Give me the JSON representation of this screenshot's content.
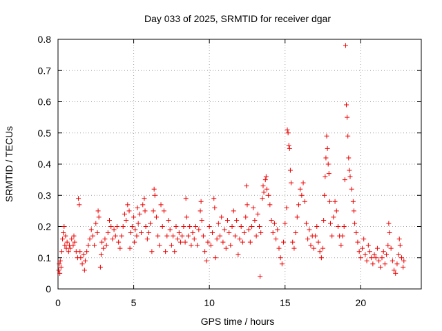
{
  "chart_data": {
    "type": "scatter",
    "title": "Day 033 of 2025, SRMTID for receiver dgar",
    "xlabel": "GPS time / hours",
    "ylabel": "SRMTID / TECUs",
    "xlim": [
      0,
      24
    ],
    "ylim": [
      0,
      0.8
    ],
    "x_ticks": [
      0,
      5,
      10,
      15,
      20
    ],
    "y_ticks": [
      0,
      0.1,
      0.2,
      0.3,
      0.4,
      0.5,
      0.6,
      0.7,
      0.8
    ],
    "x_tick_labels": [
      "0",
      "5",
      "10",
      "15",
      "20"
    ],
    "y_tick_labels": [
      "0",
      "0.1",
      "0.2",
      "0.3",
      "0.4",
      "0.5",
      "0.6",
      "0.7",
      "0.8"
    ],
    "grid": true,
    "marker": "+",
    "color": "#ee0000",
    "series": [
      {
        "name": "SRMTID",
        "points": [
          [
            0.05,
            0.06
          ],
          [
            0.08,
            0.08
          ],
          [
            0.12,
            0.05
          ],
          [
            0.15,
            0.09
          ],
          [
            0.2,
            0.07
          ],
          [
            0.25,
            0.12
          ],
          [
            0.3,
            0.16
          ],
          [
            0.35,
            0.18
          ],
          [
            0.4,
            0.2
          ],
          [
            0.45,
            0.14
          ],
          [
            0.5,
            0.17
          ],
          [
            0.55,
            0.13
          ],
          [
            0.6,
            0.15
          ],
          [
            0.7,
            0.12
          ],
          [
            0.75,
            0.14
          ],
          [
            0.8,
            0.13
          ],
          [
            0.9,
            0.16
          ],
          [
            1.0,
            0.14
          ],
          [
            1.05,
            0.17
          ],
          [
            1.1,
            0.15
          ],
          [
            1.2,
            0.12
          ],
          [
            1.3,
            0.1
          ],
          [
            1.35,
            0.29
          ],
          [
            1.4,
            0.27
          ],
          [
            1.45,
            0.12
          ],
          [
            1.5,
            0.1
          ],
          [
            1.6,
            0.08
          ],
          [
            1.7,
            0.11
          ],
          [
            1.75,
            0.06
          ],
          [
            1.8,
            0.09
          ],
          [
            1.9,
            0.12
          ],
          [
            2.0,
            0.14
          ],
          [
            2.1,
            0.16
          ],
          [
            2.2,
            0.19
          ],
          [
            2.3,
            0.17
          ],
          [
            2.4,
            0.14
          ],
          [
            2.5,
            0.21
          ],
          [
            2.6,
            0.18
          ],
          [
            2.65,
            0.25
          ],
          [
            2.7,
            0.23
          ],
          [
            2.8,
            0.07
          ],
          [
            2.85,
            0.11
          ],
          [
            2.9,
            0.15
          ],
          [
            3.0,
            0.13
          ],
          [
            3.1,
            0.16
          ],
          [
            3.2,
            0.14
          ],
          [
            3.3,
            0.18
          ],
          [
            3.4,
            0.22
          ],
          [
            3.5,
            0.2
          ],
          [
            3.6,
            0.16
          ],
          [
            3.7,
            0.19
          ],
          [
            3.8,
            0.17
          ],
          [
            3.9,
            0.2
          ],
          [
            4.0,
            0.15
          ],
          [
            4.1,
            0.13
          ],
          [
            4.2,
            0.17
          ],
          [
            4.3,
            0.2
          ],
          [
            4.4,
            0.24
          ],
          [
            4.5,
            0.22
          ],
          [
            4.6,
            0.27
          ],
          [
            4.7,
            0.25
          ],
          [
            4.75,
            0.13
          ],
          [
            4.8,
            0.18
          ],
          [
            4.9,
            0.2
          ],
          [
            5.0,
            0.23
          ],
          [
            5.05,
            0.15
          ],
          [
            5.1,
            0.19
          ],
          [
            5.2,
            0.17
          ],
          [
            5.25,
            0.26
          ],
          [
            5.3,
            0.21
          ],
          [
            5.4,
            0.24
          ],
          [
            5.5,
            0.18
          ],
          [
            5.6,
            0.27
          ],
          [
            5.7,
            0.29
          ],
          [
            5.75,
            0.25
          ],
          [
            5.8,
            0.2
          ],
          [
            5.9,
            0.16
          ],
          [
            6.0,
            0.18
          ],
          [
            6.1,
            0.21
          ],
          [
            6.2,
            0.12
          ],
          [
            6.3,
            0.25
          ],
          [
            6.35,
            0.32
          ],
          [
            6.4,
            0.3
          ],
          [
            6.5,
            0.23
          ],
          [
            6.6,
            0.17
          ],
          [
            6.7,
            0.14
          ],
          [
            6.8,
            0.27
          ],
          [
            6.9,
            0.2
          ],
          [
            7.0,
            0.25
          ],
          [
            7.1,
            0.12
          ],
          [
            7.2,
            0.17
          ],
          [
            7.3,
            0.22
          ],
          [
            7.4,
            0.19
          ],
          [
            7.5,
            0.14
          ],
          [
            7.6,
            0.17
          ],
          [
            7.7,
            0.12
          ],
          [
            7.8,
            0.2
          ],
          [
            7.9,
            0.16
          ],
          [
            8.0,
            0.18
          ],
          [
            8.1,
            0.15
          ],
          [
            8.2,
            0.17
          ],
          [
            8.3,
            0.2
          ],
          [
            8.4,
            0.15
          ],
          [
            8.45,
            0.29
          ],
          [
            8.5,
            0.23
          ],
          [
            8.6,
            0.17
          ],
          [
            8.7,
            0.2
          ],
          [
            8.8,
            0.14
          ],
          [
            8.9,
            0.18
          ],
          [
            9.0,
            0.16
          ],
          [
            9.1,
            0.2
          ],
          [
            9.2,
            0.14
          ],
          [
            9.3,
            0.19
          ],
          [
            9.4,
            0.25
          ],
          [
            9.45,
            0.28
          ],
          [
            9.5,
            0.22
          ],
          [
            9.6,
            0.17
          ],
          [
            9.7,
            0.12
          ],
          [
            9.8,
            0.09
          ],
          [
            9.9,
            0.15
          ],
          [
            10.0,
            0.2
          ],
          [
            10.1,
            0.14
          ],
          [
            10.2,
            0.18
          ],
          [
            10.3,
            0.29
          ],
          [
            10.35,
            0.26
          ],
          [
            10.4,
            0.1
          ],
          [
            10.5,
            0.16
          ],
          [
            10.6,
            0.21
          ],
          [
            10.7,
            0.17
          ],
          [
            10.8,
            0.23
          ],
          [
            10.9,
            0.15
          ],
          [
            11.0,
            0.19
          ],
          [
            11.1,
            0.13
          ],
          [
            11.2,
            0.22
          ],
          [
            11.3,
            0.18
          ],
          [
            11.4,
            0.14
          ],
          [
            11.5,
            0.2
          ],
          [
            11.6,
            0.25
          ],
          [
            11.7,
            0.17
          ],
          [
            11.8,
            0.22
          ],
          [
            11.9,
            0.11
          ],
          [
            12.0,
            0.16
          ],
          [
            12.1,
            0.2
          ],
          [
            12.2,
            0.15
          ],
          [
            12.3,
            0.18
          ],
          [
            12.4,
            0.23
          ],
          [
            12.45,
            0.33
          ],
          [
            12.5,
            0.27
          ],
          [
            12.6,
            0.19
          ],
          [
            12.7,
            0.15
          ],
          [
            12.8,
            0.2
          ],
          [
            12.9,
            0.26
          ],
          [
            13.0,
            0.22
          ],
          [
            13.1,
            0.17
          ],
          [
            13.2,
            0.24
          ],
          [
            13.3,
            0.2
          ],
          [
            13.35,
            0.04
          ],
          [
            13.4,
            0.18
          ],
          [
            13.5,
            0.29
          ],
          [
            13.55,
            0.33
          ],
          [
            13.6,
            0.31
          ],
          [
            13.7,
            0.35
          ],
          [
            13.75,
            0.36
          ],
          [
            13.8,
            0.32
          ],
          [
            13.9,
            0.3
          ],
          [
            14.0,
            0.27
          ],
          [
            14.1,
            0.22
          ],
          [
            14.2,
            0.18
          ],
          [
            14.3,
            0.21
          ],
          [
            14.4,
            0.16
          ],
          [
            14.5,
            0.19
          ],
          [
            14.6,
            0.13
          ],
          [
            14.7,
            0.1
          ],
          [
            14.8,
            0.08
          ],
          [
            14.9,
            0.15
          ],
          [
            15.0,
            0.21
          ],
          [
            15.1,
            0.26
          ],
          [
            15.15,
            0.51
          ],
          [
            15.2,
            0.5
          ],
          [
            15.25,
            0.46
          ],
          [
            15.3,
            0.45
          ],
          [
            15.35,
            0.38
          ],
          [
            15.4,
            0.34
          ],
          [
            15.5,
            0.15
          ],
          [
            15.6,
            0.13
          ],
          [
            15.7,
            0.18
          ],
          [
            15.8,
            0.23
          ],
          [
            15.9,
            0.27
          ],
          [
            16.0,
            0.32
          ],
          [
            16.1,
            0.3
          ],
          [
            16.2,
            0.34
          ],
          [
            16.3,
            0.28
          ],
          [
            16.4,
            0.21
          ],
          [
            16.5,
            0.16
          ],
          [
            16.6,
            0.19
          ],
          [
            16.7,
            0.14
          ],
          [
            16.8,
            0.17
          ],
          [
            16.9,
            0.13
          ],
          [
            17.0,
            0.17
          ],
          [
            17.1,
            0.2
          ],
          [
            17.2,
            0.15
          ],
          [
            17.3,
            0.12
          ],
          [
            17.4,
            0.1
          ],
          [
            17.5,
            0.13
          ],
          [
            17.55,
            0.22
          ],
          [
            17.6,
            0.3
          ],
          [
            17.65,
            0.36
          ],
          [
            17.7,
            0.42
          ],
          [
            17.75,
            0.49
          ],
          [
            17.8,
            0.45
          ],
          [
            17.85,
            0.4
          ],
          [
            17.9,
            0.37
          ],
          [
            17.95,
            0.28
          ],
          [
            18.0,
            0.21
          ],
          [
            18.1,
            0.17
          ],
          [
            18.2,
            0.23
          ],
          [
            18.3,
            0.28
          ],
          [
            18.4,
            0.25
          ],
          [
            18.5,
            0.2
          ],
          [
            18.6,
            0.17
          ],
          [
            18.7,
            0.14
          ],
          [
            18.8,
            0.17
          ],
          [
            18.9,
            0.2
          ],
          [
            18.95,
            0.35
          ],
          [
            19.0,
            0.78
          ],
          [
            19.05,
            0.59
          ],
          [
            19.1,
            0.55
          ],
          [
            19.15,
            0.49
          ],
          [
            19.2,
            0.42
          ],
          [
            19.25,
            0.38
          ],
          [
            19.3,
            0.36
          ],
          [
            19.4,
            0.32
          ],
          [
            19.5,
            0.28
          ],
          [
            19.55,
            0.25
          ],
          [
            19.6,
            0.21
          ],
          [
            19.7,
            0.18
          ],
          [
            19.8,
            0.15
          ],
          [
            19.9,
            0.12
          ],
          [
            20.0,
            0.1
          ],
          [
            20.1,
            0.13
          ],
          [
            20.2,
            0.16
          ],
          [
            20.3,
            0.11
          ],
          [
            20.4,
            0.09
          ],
          [
            20.5,
            0.14
          ],
          [
            20.6,
            0.12
          ],
          [
            20.7,
            0.1
          ],
          [
            20.8,
            0.08
          ],
          [
            20.9,
            0.11
          ],
          [
            21.0,
            0.1
          ],
          [
            21.1,
            0.13
          ],
          [
            21.2,
            0.09
          ],
          [
            21.3,
            0.07
          ],
          [
            21.4,
            0.1
          ],
          [
            21.5,
            0.12
          ],
          [
            21.6,
            0.08
          ],
          [
            21.7,
            0.11
          ],
          [
            21.8,
            0.14
          ],
          [
            21.85,
            0.21
          ],
          [
            21.9,
            0.18
          ],
          [
            22.0,
            0.13
          ],
          [
            22.1,
            0.09
          ],
          [
            22.2,
            0.06
          ],
          [
            22.3,
            0.05
          ],
          [
            22.4,
            0.08
          ],
          [
            22.5,
            0.11
          ],
          [
            22.55,
            0.16
          ],
          [
            22.6,
            0.14
          ],
          [
            22.7,
            0.1
          ],
          [
            22.8,
            0.07
          ],
          [
            22.85,
            0.09
          ]
        ]
      }
    ]
  }
}
